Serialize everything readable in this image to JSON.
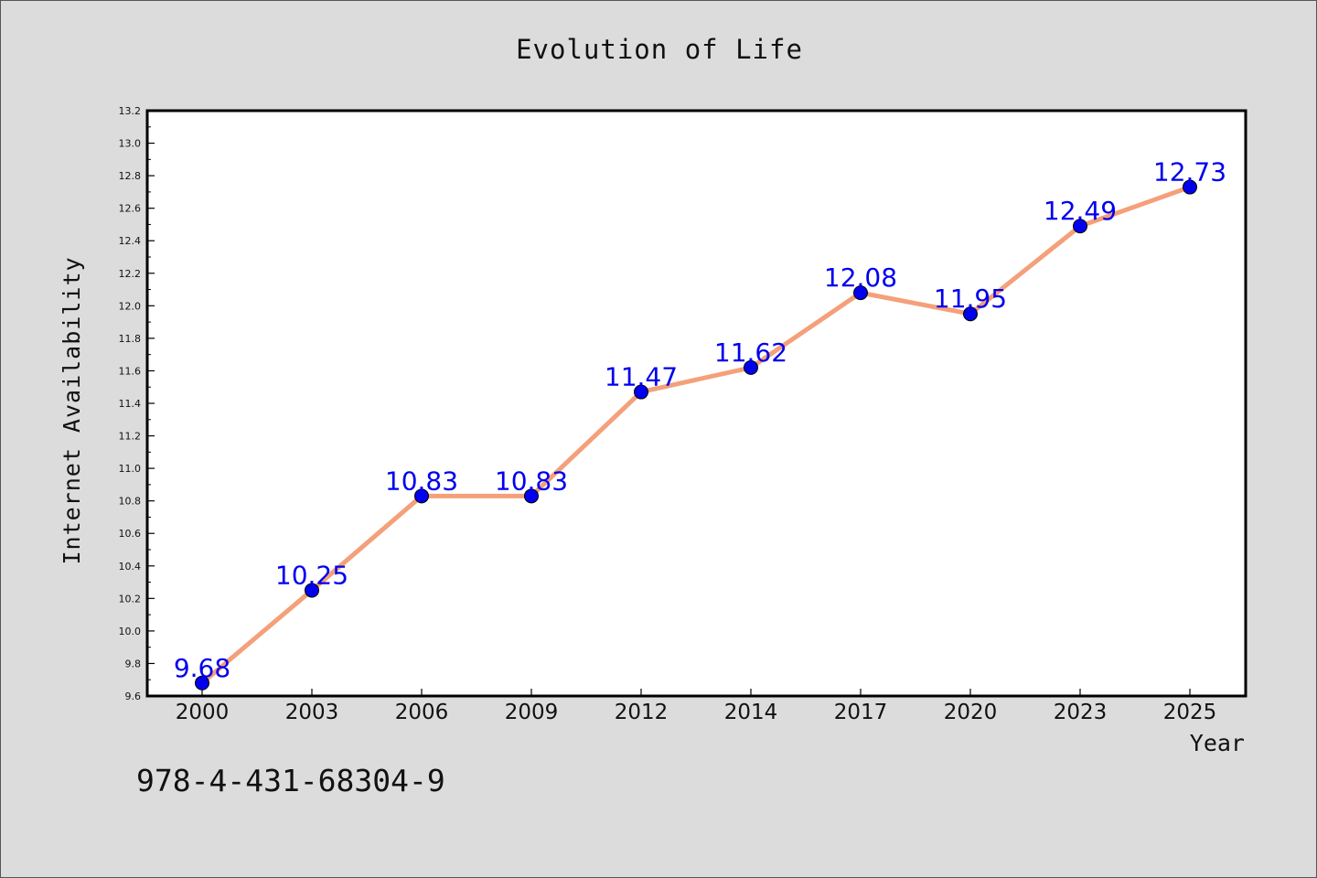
{
  "chart_data": {
    "type": "line",
    "title": "Evolution of Life",
    "xlabel": "Year",
    "ylabel": "Internet Availability",
    "categories": [
      "2000",
      "2003",
      "2006",
      "2009",
      "2012",
      "2014",
      "2017",
      "2020",
      "2023",
      "2025"
    ],
    "series": [
      {
        "values": [
          9.68,
          10.25,
          10.83,
          10.83,
          11.47,
          11.62,
          12.08,
          11.95,
          12.49,
          12.73
        ],
        "line_color": "#f4a07a",
        "marker_color": "#0000ee"
      }
    ],
    "data_labels": [
      "9.68",
      "10.25",
      "10.83",
      "10.83",
      "11.47",
      "11.62",
      "12.08",
      "11.95",
      "12.49",
      "12.73"
    ],
    "ylim": [
      9.6,
      13.2
    ],
    "yticks": [
      "9.6",
      "9.8",
      "10.0",
      "10.2",
      "10.4",
      "10.6",
      "10.8",
      "11.0",
      "11.2",
      "11.4",
      "11.6",
      "11.8",
      "12.0",
      "12.2",
      "12.4",
      "12.6",
      "12.8",
      "13.0",
      "13.2"
    ],
    "grid": false,
    "legend": "none",
    "label_color": "#0000ee"
  },
  "footer": {
    "isbn": "978-4-431-68304-9"
  }
}
